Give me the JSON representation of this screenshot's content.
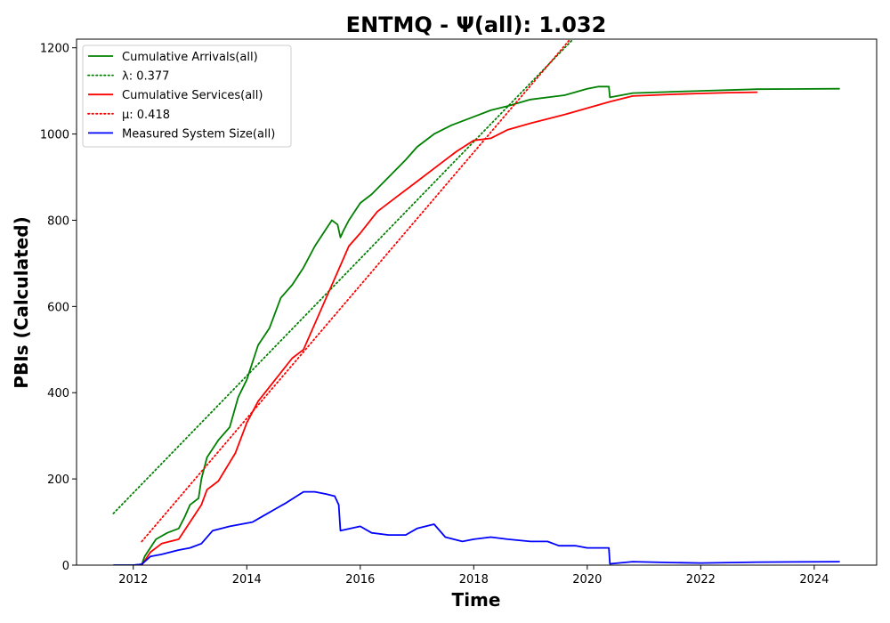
{
  "chart_data": {
    "type": "line",
    "title": "ENTMQ -  Ψ(all): 1.032",
    "xlabel": "Time",
    "ylabel": "PBIs (Calculated)",
    "xlim": [
      2011.0,
      2025.1
    ],
    "ylim": [
      0,
      1220
    ],
    "xticks": [
      "2012",
      "2014",
      "2016",
      "2018",
      "2020",
      "2022",
      "2024"
    ],
    "yticks": [
      "0",
      "200",
      "400",
      "600",
      "800",
      "1000",
      "1200"
    ],
    "legend_position": "top-left",
    "series": [
      {
        "name": "Cumulative Arrivals(all)",
        "color": "#008000",
        "style": "solid",
        "x": [
          2011.65,
          2012.0,
          2012.15,
          2012.2,
          2012.4,
          2012.6,
          2012.8,
          2012.9,
          2013.0,
          2013.15,
          2013.2,
          2013.3,
          2013.5,
          2013.7,
          2013.85,
          2014.0,
          2014.2,
          2014.4,
          2014.6,
          2014.8,
          2015.0,
          2015.2,
          2015.4,
          2015.5,
          2015.6,
          2015.65,
          2015.7,
          2015.8,
          2016.0,
          2016.2,
          2016.5,
          2016.8,
          2017.0,
          2017.3,
          2017.6,
          2018.0,
          2018.3,
          2018.6,
          2019.0,
          2019.3,
          2019.6,
          2020.0,
          2020.2,
          2020.38,
          2020.4,
          2020.8,
          2021.5,
          2022.0,
          2022.5,
          2023.0,
          2024.45
        ],
        "y": [
          0,
          0,
          2,
          20,
          60,
          75,
          85,
          110,
          140,
          155,
          200,
          250,
          290,
          320,
          390,
          430,
          510,
          550,
          620,
          650,
          690,
          740,
          780,
          800,
          790,
          760,
          775,
          800,
          840,
          860,
          900,
          940,
          970,
          1000,
          1020,
          1040,
          1055,
          1065,
          1080,
          1085,
          1090,
          1105,
          1110,
          1110,
          1085,
          1095,
          1098,
          1100,
          1102,
          1104,
          1105
        ]
      },
      {
        "name": "λ: 0.377",
        "color": "#008000",
        "style": "dotted",
        "x": [
          2011.65,
          2019.75
        ],
        "y": [
          120,
          1220
        ]
      },
      {
        "name": "Cumulative Services(all)",
        "color": "#ff0000",
        "style": "solid",
        "x": [
          2012.15,
          2012.3,
          2012.5,
          2012.8,
          2013.0,
          2013.2,
          2013.3,
          2013.5,
          2013.8,
          2014.0,
          2014.2,
          2014.5,
          2014.8,
          2015.0,
          2015.2,
          2015.4,
          2015.6,
          2015.8,
          2016.0,
          2016.3,
          2016.6,
          2017.0,
          2017.3,
          2017.7,
          2018.0,
          2018.3,
          2018.6,
          2019.0,
          2019.3,
          2019.6,
          2020.0,
          2020.4,
          2020.8,
          2021.5,
          2022.0,
          2022.5,
          2023.0
        ],
        "y": [
          0,
          30,
          50,
          60,
          100,
          140,
          175,
          195,
          260,
          330,
          380,
          430,
          480,
          500,
          560,
          620,
          680,
          740,
          770,
          820,
          850,
          890,
          920,
          960,
          985,
          990,
          1010,
          1025,
          1035,
          1045,
          1060,
          1075,
          1088,
          1092,
          1094,
          1096,
          1097
        ]
      },
      {
        "name": "μ: 0.418",
        "color": "#ff0000",
        "style": "dotted",
        "x": [
          2012.15,
          2019.7
        ],
        "y": [
          55,
          1220
        ]
      },
      {
        "name": "Measured System Size(all)",
        "color": "#0000ff",
        "style": "solid",
        "x": [
          2011.65,
          2012.0,
          2012.15,
          2012.3,
          2012.5,
          2012.8,
          2013.0,
          2013.2,
          2013.4,
          2013.7,
          2013.9,
          2014.1,
          2014.3,
          2014.5,
          2014.7,
          2015.0,
          2015.2,
          2015.4,
          2015.55,
          2015.62,
          2015.65,
          2016.0,
          2016.2,
          2016.5,
          2016.8,
          2017.0,
          2017.3,
          2017.5,
          2017.8,
          2018.0,
          2018.3,
          2018.6,
          2019.0,
          2019.3,
          2019.5,
          2019.8,
          2020.0,
          2020.38,
          2020.4,
          2020.8,
          2021.5,
          2022.0,
          2022.5,
          2023.0,
          2024.45
        ],
        "y": [
          0,
          0,
          2,
          20,
          25,
          35,
          40,
          50,
          80,
          90,
          95,
          100,
          115,
          130,
          145,
          170,
          170,
          165,
          160,
          140,
          80,
          90,
          75,
          70,
          70,
          85,
          95,
          65,
          55,
          60,
          65,
          60,
          55,
          55,
          45,
          45,
          40,
          40,
          3,
          8,
          6,
          5,
          6,
          7,
          8
        ]
      }
    ]
  }
}
